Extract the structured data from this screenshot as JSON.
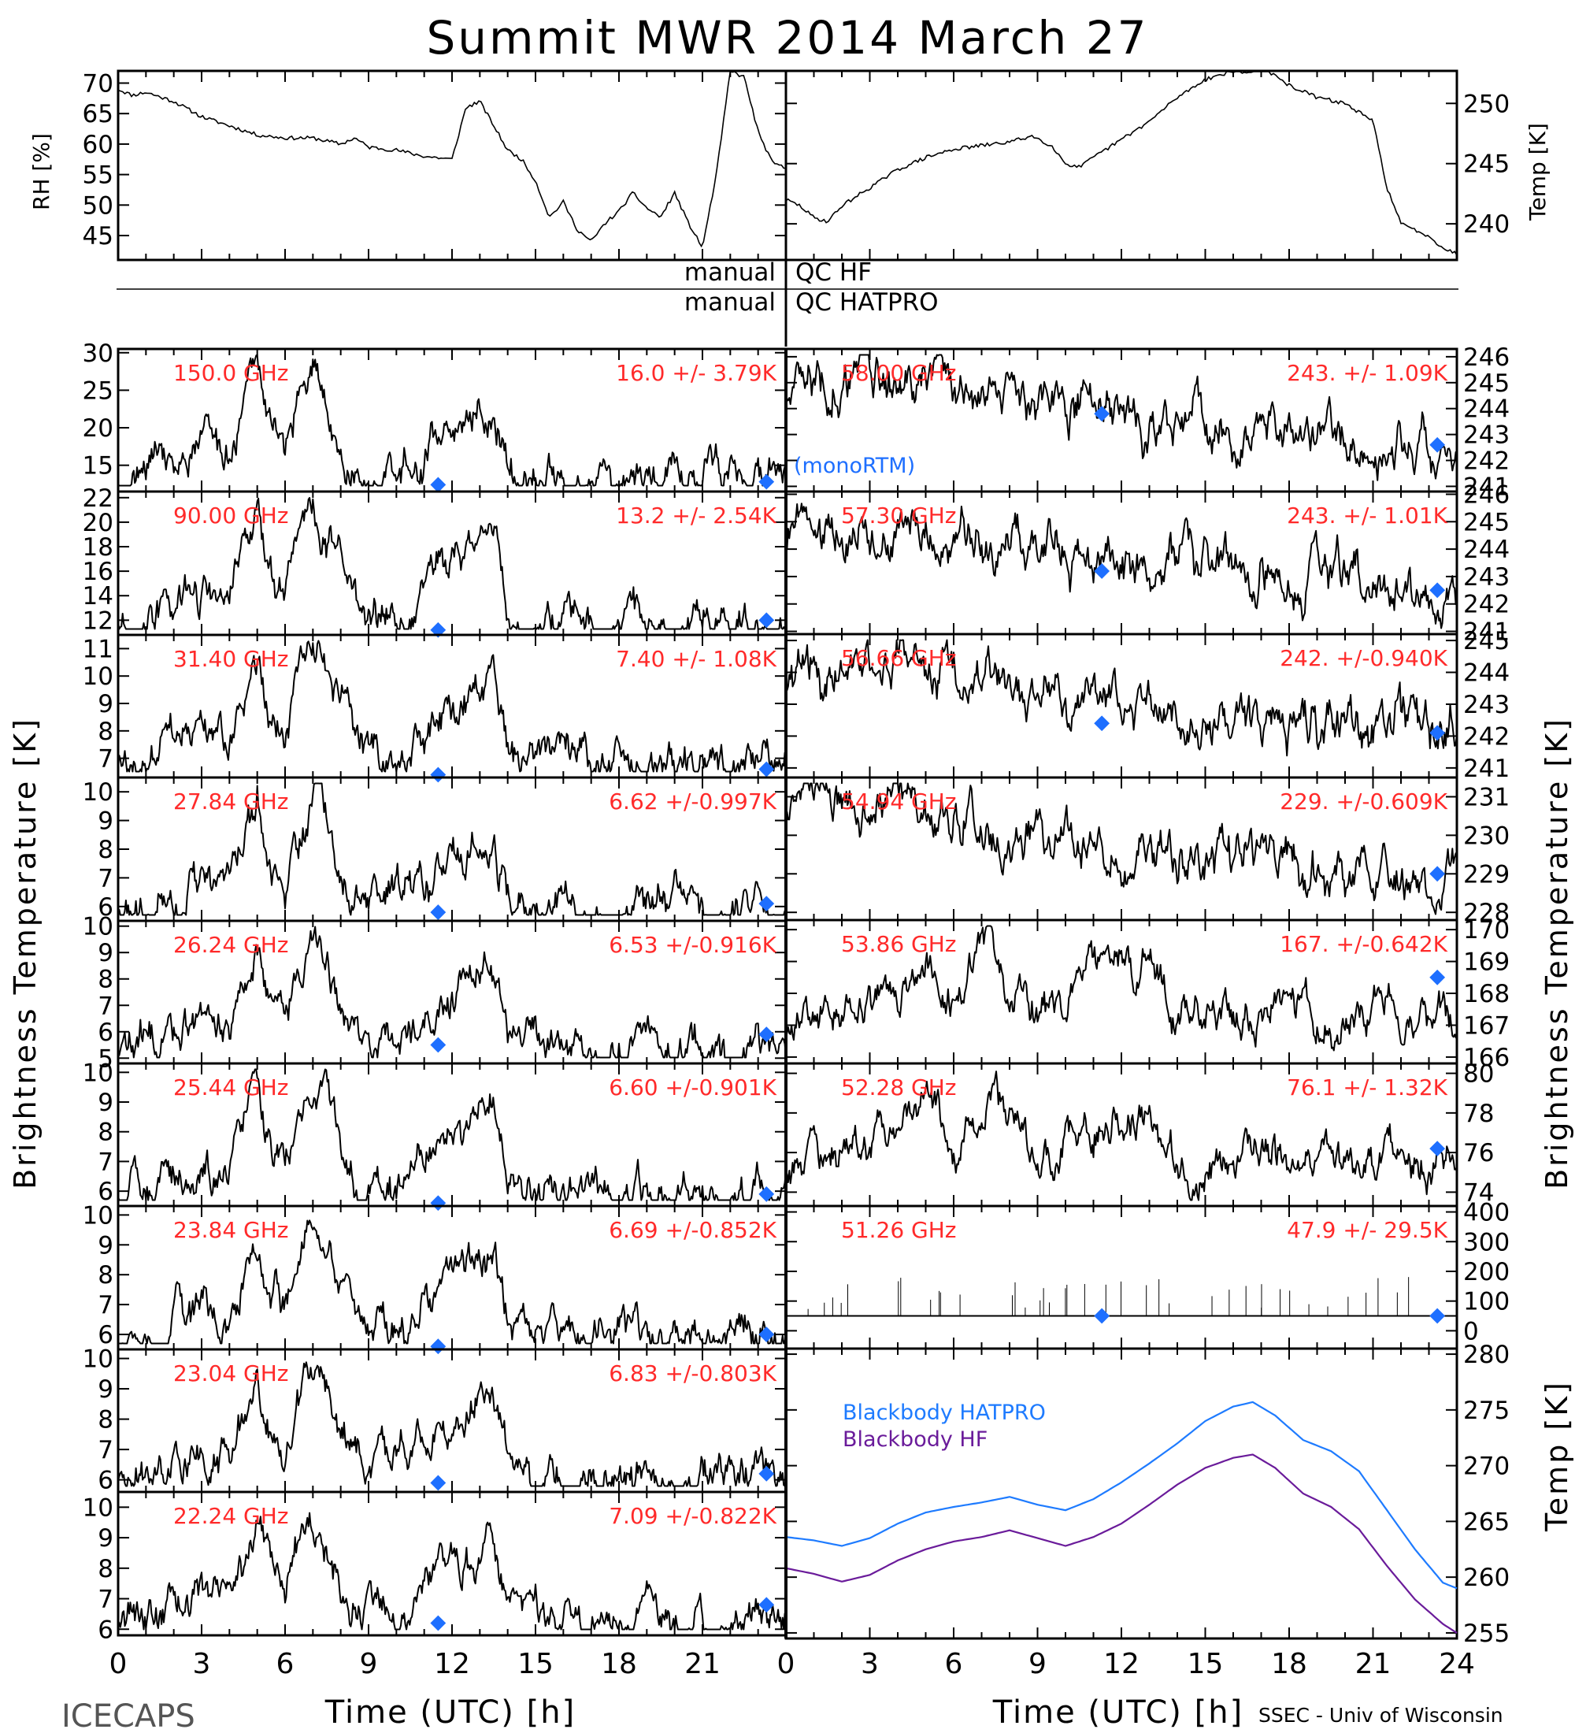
{
  "title": "Summit MWR 2014 March 27",
  "footer_left": "ICECAPS",
  "footer_right": "SSEC - Univ of Wisconsin",
  "colors": {
    "trace": "#000000",
    "label": "#ff2a2a",
    "model": "#1e6fff",
    "bb_hatpro": "#1e7bff",
    "bb_hf": "#6a1b9a"
  },
  "met": {
    "rh_label": "RH [%]",
    "temp_label": "Temp [K]",
    "rh_ticks": [
      45,
      50,
      55,
      60,
      65,
      70
    ],
    "temp_ticks": [
      240,
      245,
      250
    ]
  },
  "qc": {
    "row1_left": "manual",
    "row1_right": "QC HF",
    "row2_left": "manual",
    "row2_right": "QC HATPRO"
  },
  "axis": {
    "left_ylabel": "Brightness Temperature [K]",
    "right_ylabel": "Brightness Temperature [K]",
    "bb_ylabel": "Temp [K]",
    "xlabel_left": "Time (UTC) [h]",
    "xlabel_right": "Time (UTC) [h]",
    "xticks_left": [
      "0",
      "3",
      "6",
      "9",
      "12",
      "15",
      "18",
      "21"
    ],
    "xticks_right": [
      "0",
      "3",
      "6",
      "9",
      "12",
      "15",
      "18",
      "21",
      "24"
    ]
  },
  "model_legend": "monoRTM",
  "model_legend_prefix": "(monoRTM)",
  "bb_legend": {
    "hatpro": "Blackbody HATPRO",
    "hf": "Blackbody HF"
  },
  "chart_data": {
    "type": "line",
    "xlim": [
      0,
      24
    ],
    "left_channels": [
      {
        "freq": "150.0 GHz",
        "stat": "16.0 +/-  3.79K",
        "yticks": [
          15,
          20,
          25,
          30
        ],
        "ylim": [
          11.5,
          30.5
        ],
        "model": [
          [
            11.5,
            12.4
          ],
          [
            23.3,
            12.8
          ]
        ]
      },
      {
        "freq": "90.00 GHz",
        "stat": "13.2 +/-  2.54K",
        "yticks": [
          12,
          14,
          16,
          18,
          20,
          22
        ],
        "ylim": [
          10.8,
          22.5
        ],
        "model": [
          [
            11.5,
            11.2
          ],
          [
            23.3,
            12.0
          ]
        ]
      },
      {
        "freq": "31.40 GHz",
        "stat": "7.40 +/- 1.08K",
        "yticks": [
          7,
          8,
          9,
          10,
          11
        ],
        "ylim": [
          6.3,
          11.5
        ],
        "model": [
          [
            11.5,
            6.4
          ],
          [
            23.3,
            6.6
          ]
        ]
      },
      {
        "freq": "27.84 GHz",
        "stat": "6.62 +/-0.997K",
        "yticks": [
          6,
          7,
          8,
          9,
          10
        ],
        "ylim": [
          5.5,
          10.5
        ],
        "model": [
          [
            11.5,
            5.8
          ],
          [
            23.3,
            6.1
          ]
        ]
      },
      {
        "freq": "26.24 GHz",
        "stat": "6.53 +/-0.916K",
        "yticks": [
          5,
          6,
          7,
          8,
          9,
          10
        ],
        "ylim": [
          4.8,
          10.2
        ],
        "model": [
          [
            11.5,
            5.5
          ],
          [
            23.3,
            5.9
          ]
        ]
      },
      {
        "freq": "25.44 GHz",
        "stat": "6.60 +/-0.901K",
        "yticks": [
          6,
          7,
          8,
          9,
          10
        ],
        "ylim": [
          5.5,
          10.3
        ],
        "model": [
          [
            11.5,
            5.6
          ],
          [
            23.3,
            5.9
          ]
        ]
      },
      {
        "freq": "23.84 GHz",
        "stat": "6.69 +/-0.852K",
        "yticks": [
          6,
          7,
          8,
          9,
          10
        ],
        "ylim": [
          5.5,
          10.3
        ],
        "model": [
          [
            11.5,
            5.6
          ],
          [
            23.3,
            6.0
          ]
        ]
      },
      {
        "freq": "23.04 GHz",
        "stat": "6.83 +/-0.803K",
        "yticks": [
          6,
          7,
          8,
          9,
          10
        ],
        "ylim": [
          5.6,
          10.3
        ],
        "model": [
          [
            11.5,
            5.9
          ],
          [
            23.3,
            6.2
          ]
        ]
      },
      {
        "freq": "22.24 GHz",
        "stat": "7.09 +/-0.822K",
        "yticks": [
          6,
          7,
          8,
          9,
          10
        ],
        "ylim": [
          5.8,
          10.5
        ],
        "model": [
          [
            11.5,
            6.2
          ],
          [
            23.3,
            6.8
          ]
        ]
      }
    ],
    "right_channels": [
      {
        "freq": "58.00 GHz",
        "stat": "243. +/- 1.09K",
        "yticks": [
          241,
          242,
          243,
          244,
          245,
          246
        ],
        "ylim": [
          240.8,
          246.3
        ],
        "model": [
          [
            11.3,
            243.8
          ],
          [
            23.3,
            242.6
          ]
        ]
      },
      {
        "freq": "57.30 GHz",
        "stat": "243. +/- 1.01K",
        "yticks": [
          241,
          242,
          243,
          244,
          245,
          246
        ],
        "ylim": [
          240.9,
          246.1
        ],
        "model": [
          [
            11.3,
            243.2
          ],
          [
            23.3,
            242.5
          ]
        ]
      },
      {
        "freq": "56.66 GHz",
        "stat": "242. +/-0.940K",
        "yticks": [
          241,
          242,
          243,
          244,
          245
        ],
        "ylim": [
          240.7,
          245.2
        ],
        "model": [
          [
            11.3,
            242.4
          ],
          [
            23.3,
            242.1
          ]
        ]
      },
      {
        "freq": "54.94 GHz",
        "stat": "229. +/-0.609K",
        "yticks": [
          228,
          229,
          230,
          231
        ],
        "ylim": [
          227.8,
          231.5
        ],
        "model": [
          [
            23.3,
            229.0
          ]
        ]
      },
      {
        "freq": "53.86 GHz",
        "stat": "167. +/-0.642K",
        "yticks": [
          166,
          167,
          168,
          169,
          170
        ],
        "ylim": [
          165.8,
          170.3
        ],
        "model": [
          [
            23.3,
            168.5
          ]
        ]
      },
      {
        "freq": "52.28 GHz",
        "stat": "76.1 +/- 1.32K",
        "yticks": [
          74,
          76,
          78,
          80
        ],
        "ylim": [
          73.3,
          80.5
        ],
        "model": [
          [
            23.3,
            76.2
          ]
        ]
      },
      {
        "freq": "51.26 GHz",
        "stat": "47.9 +/- 29.5K",
        "yticks": [
          0,
          100,
          200,
          300,
          400
        ],
        "ylim": [
          -60,
          420
        ],
        "model": [
          [
            11.3,
            50
          ],
          [
            23.3,
            50
          ]
        ]
      }
    ],
    "blackbody": {
      "yticks": [
        255,
        260,
        265,
        270,
        275,
        280
      ],
      "ylim": [
        254.5,
        280.5
      ],
      "hatpro": [
        [
          0,
          263.6
        ],
        [
          1,
          263.3
        ],
        [
          2,
          262.8
        ],
        [
          3,
          263.5
        ],
        [
          4,
          264.8
        ],
        [
          5,
          265.8
        ],
        [
          6,
          266.3
        ],
        [
          7,
          266.7
        ],
        [
          8,
          267.2
        ],
        [
          9,
          266.5
        ],
        [
          10,
          266.0
        ],
        [
          11,
          267.0
        ],
        [
          12,
          268.5
        ],
        [
          13,
          270.2
        ],
        [
          14,
          272.0
        ],
        [
          15,
          274.0
        ],
        [
          16,
          275.3
        ],
        [
          16.7,
          275.7
        ],
        [
          17.5,
          274.5
        ],
        [
          18.5,
          272.3
        ],
        [
          19.5,
          271.3
        ],
        [
          20.5,
          269.5
        ],
        [
          21.5,
          266.0
        ],
        [
          22.5,
          262.5
        ],
        [
          23.5,
          259.5
        ],
        [
          24,
          259.0
        ]
      ],
      "hf": [
        [
          0,
          260.8
        ],
        [
          1,
          260.3
        ],
        [
          2,
          259.6
        ],
        [
          3,
          260.2
        ],
        [
          4,
          261.5
        ],
        [
          5,
          262.5
        ],
        [
          6,
          263.2
        ],
        [
          7,
          263.6
        ],
        [
          8,
          264.2
        ],
        [
          9,
          263.5
        ],
        [
          10,
          262.8
        ],
        [
          11,
          263.6
        ],
        [
          12,
          264.8
        ],
        [
          13,
          266.5
        ],
        [
          14,
          268.3
        ],
        [
          15,
          269.8
        ],
        [
          16,
          270.7
        ],
        [
          16.7,
          271.0
        ],
        [
          17.5,
          269.8
        ],
        [
          18.5,
          267.5
        ],
        [
          19.5,
          266.3
        ],
        [
          20.5,
          264.3
        ],
        [
          21.5,
          261.0
        ],
        [
          22.5,
          258.0
        ],
        [
          23.5,
          255.8
        ],
        [
          24,
          255.0
        ]
      ]
    },
    "rh": [
      [
        0,
        69
      ],
      [
        0.5,
        68
      ],
      [
        1,
        68.5
      ],
      [
        2,
        67
      ],
      [
        3,
        64.5
      ],
      [
        4,
        63
      ],
      [
        5,
        61.5
      ],
      [
        6,
        61
      ],
      [
        7,
        61
      ],
      [
        8,
        60
      ],
      [
        8.5,
        61
      ],
      [
        9,
        59.5
      ],
      [
        10,
        59
      ],
      [
        11,
        58
      ],
      [
        12,
        57.5
      ],
      [
        12.5,
        66
      ],
      [
        13,
        67
      ],
      [
        13.5,
        63
      ],
      [
        14,
        59
      ],
      [
        14.5,
        57.5
      ],
      [
        15,
        54
      ],
      [
        15.5,
        48
      ],
      [
        16,
        50.5
      ],
      [
        16.5,
        46
      ],
      [
        17,
        44
      ],
      [
        17.5,
        47
      ],
      [
        18,
        49
      ],
      [
        18.5,
        52
      ],
      [
        19,
        49.5
      ],
      [
        19.5,
        48
      ],
      [
        20,
        52
      ],
      [
        20.5,
        47
      ],
      [
        21,
        43
      ],
      [
        21.5,
        55
      ],
      [
        22,
        72
      ],
      [
        22.5,
        71
      ],
      [
        23,
        62
      ],
      [
        23.5,
        57
      ],
      [
        24,
        56
      ]
    ],
    "temp": [
      [
        0,
        242
      ],
      [
        0.5,
        241.5
      ],
      [
        1,
        240.5
      ],
      [
        1.5,
        240.2
      ],
      [
        2,
        241.5
      ],
      [
        3,
        243
      ],
      [
        4,
        244.5
      ],
      [
        5,
        245.5
      ],
      [
        6,
        246.2
      ],
      [
        7,
        246.5
      ],
      [
        8,
        246.8
      ],
      [
        8.8,
        247.3
      ],
      [
        9.5,
        246.5
      ],
      [
        10,
        245
      ],
      [
        10.5,
        244.7
      ],
      [
        11,
        245.5
      ],
      [
        12,
        247
      ],
      [
        13,
        248.5
      ],
      [
        14,
        250.5
      ],
      [
        15,
        252
      ],
      [
        16,
        252.7
      ],
      [
        16.5,
        252.5
      ],
      [
        17,
        253
      ],
      [
        18,
        251.5
      ],
      [
        19,
        250.5
      ],
      [
        20,
        250
      ],
      [
        21,
        248.5
      ],
      [
        21.5,
        243
      ],
      [
        22,
        240
      ],
      [
        22.5,
        239.5
      ],
      [
        23,
        239
      ],
      [
        23.5,
        238
      ],
      [
        24,
        237.5
      ]
    ]
  }
}
